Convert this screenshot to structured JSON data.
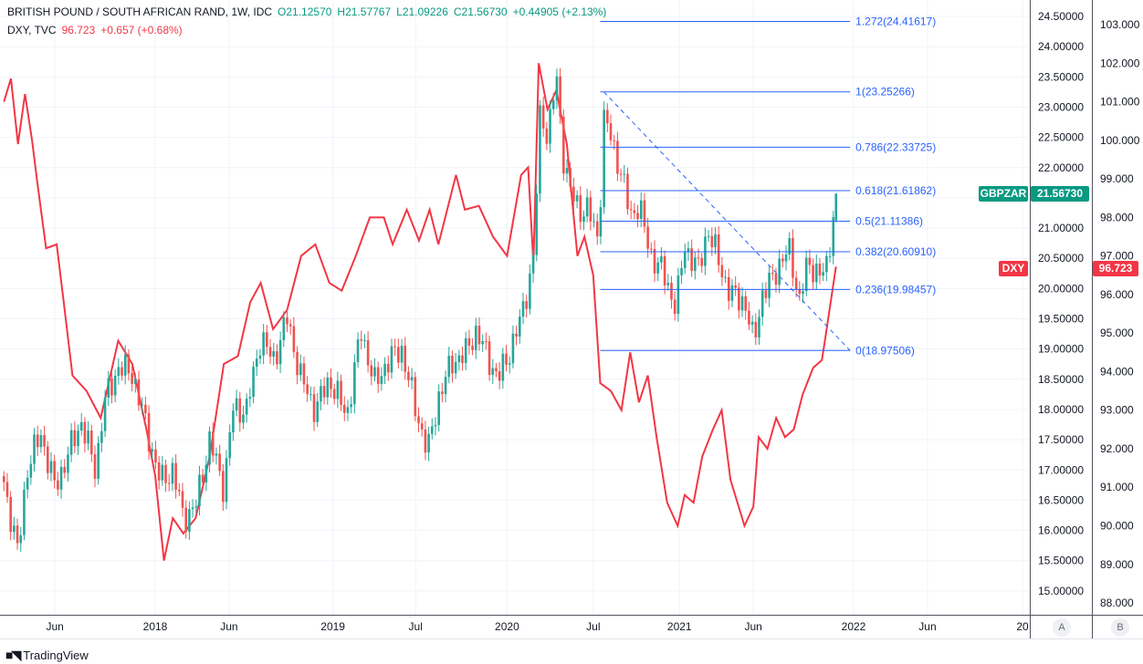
{
  "header": {
    "symbol_line": "BRITISH POUND / SOUTH AFRICAN RAND, 1W, IDC",
    "open": "O21.12570",
    "high": "H21.57767",
    "low": "L21.09226",
    "close": "C21.56730",
    "change": "+0.44905 (+2.13%)",
    "dxy_line": "DXY, TVC",
    "dxy_value": "96.723",
    "dxy_change": "+0.657 (+0.68%)"
  },
  "badges": {
    "gbpzar_name": "GBPZAR",
    "gbpzar_price": "21.56730",
    "dxy_name": "DXY",
    "dxy_price": "96.723"
  },
  "scale_buttons": {
    "a": "A",
    "b": "B"
  },
  "footer": {
    "brand": "TradingView"
  },
  "colors": {
    "up": "#26a69a",
    "down": "#ef5350",
    "dxy": "#f23645",
    "fib": "#2962ff",
    "badge_green": "#089981",
    "badge_red": "#f23645"
  },
  "chart_data": {
    "type": "line",
    "title": "BRITISH POUND / SOUTH AFRICAN RAND, 1W, IDC vs DXY",
    "x_unit": "decimal year",
    "x_ticks": [
      {
        "label": "Jun",
        "t": 2017.43
      },
      {
        "label": "2018",
        "t": 2018.0
      },
      {
        "label": "Jun",
        "t": 2018.42
      },
      {
        "label": "2019",
        "t": 2019.01
      },
      {
        "label": "Jul",
        "t": 2019.48
      },
      {
        "label": "2020",
        "t": 2020.0
      },
      {
        "label": "Jul",
        "t": 2020.49
      },
      {
        "label": "2021",
        "t": 2020.98
      },
      {
        "label": "Jun",
        "t": 2021.4
      },
      {
        "label": "2022",
        "t": 2021.97
      },
      {
        "label": "Jun",
        "t": 2022.39
      },
      {
        "label": "20",
        "t": 2022.93
      }
    ],
    "left_axis": {
      "name": "GBPZAR",
      "ylim": [
        15.0,
        24.5
      ],
      "step": 0.5,
      "decimals": 5
    },
    "right_axis": {
      "name": "DXY",
      "ylim": [
        88,
        103
      ],
      "step": 1,
      "decimals": 3
    },
    "series": [
      {
        "name": "GBPZAR",
        "type": "candlestick",
        "axis": "A",
        "last_candle": {
          "open": 21.1257,
          "high": 21.57767,
          "low": 21.09226,
          "close": 21.5673
        },
        "closes": [
          [
            2017.14,
            16.8
          ],
          [
            2017.22,
            15.6
          ],
          [
            2017.27,
            17.0
          ],
          [
            2017.35,
            17.6
          ],
          [
            2017.43,
            16.7
          ],
          [
            2017.51,
            17.3
          ],
          [
            2017.58,
            17.8
          ],
          [
            2017.66,
            17.0
          ],
          [
            2017.71,
            18.1
          ],
          [
            2017.79,
            18.7
          ],
          [
            2017.87,
            18.6
          ],
          [
            2017.95,
            17.7
          ],
          [
            2018.03,
            16.8
          ],
          [
            2018.1,
            17.0
          ],
          [
            2018.16,
            16.2
          ],
          [
            2018.23,
            16.4
          ],
          [
            2018.31,
            17.5
          ],
          [
            2018.39,
            16.7
          ],
          [
            2018.44,
            18.0
          ],
          [
            2018.52,
            18.0
          ],
          [
            2018.6,
            19.2
          ],
          [
            2018.67,
            18.8
          ],
          [
            2018.75,
            19.5
          ],
          [
            2018.83,
            18.5
          ],
          [
            2018.91,
            18.0
          ],
          [
            2018.99,
            18.5
          ],
          [
            2019.09,
            17.9
          ],
          [
            2019.17,
            19.3
          ],
          [
            2019.25,
            18.4
          ],
          [
            2019.32,
            18.8
          ],
          [
            2019.4,
            19.0
          ],
          [
            2019.48,
            18.0
          ],
          [
            2019.55,
            17.3
          ],
          [
            2019.61,
            18.2
          ],
          [
            2019.69,
            18.8
          ],
          [
            2019.76,
            18.9
          ],
          [
            2019.82,
            19.3
          ],
          [
            2019.87,
            19.0
          ],
          [
            2019.95,
            18.5
          ],
          [
            2020.02,
            19.0
          ],
          [
            2020.08,
            19.5
          ],
          [
            2020.15,
            20.5
          ],
          [
            2020.19,
            23.0
          ],
          [
            2020.23,
            22.5
          ],
          [
            2020.28,
            23.5
          ],
          [
            2020.32,
            22.2
          ],
          [
            2020.36,
            21.6
          ],
          [
            2020.41,
            21.3
          ],
          [
            2020.46,
            21.3
          ],
          [
            2020.52,
            20.8
          ],
          [
            2020.55,
            22.8
          ],
          [
            2020.58,
            22.6
          ],
          [
            2020.65,
            21.9
          ],
          [
            2020.7,
            21.2
          ],
          [
            2020.75,
            21.4
          ],
          [
            2020.81,
            20.6
          ],
          [
            2020.88,
            20.3
          ],
          [
            2020.96,
            19.7
          ],
          [
            2021.01,
            20.7
          ],
          [
            2021.09,
            20.3
          ],
          [
            2021.14,
            21.0
          ],
          [
            2021.22,
            20.3
          ],
          [
            2021.27,
            19.9
          ],
          [
            2021.35,
            19.8
          ],
          [
            2021.4,
            19.1
          ],
          [
            2021.45,
            19.9
          ],
          [
            2021.5,
            20.1
          ],
          [
            2021.56,
            20.5
          ],
          [
            2021.61,
            20.6
          ],
          [
            2021.66,
            19.8
          ],
          [
            2021.71,
            20.4
          ],
          [
            2021.76,
            20.3
          ],
          [
            2021.81,
            20.2
          ],
          [
            2021.87,
            21.5673
          ]
        ]
      },
      {
        "name": "DXY",
        "type": "line",
        "axis": "B",
        "points": [
          [
            2017.14,
            101.0
          ],
          [
            2017.18,
            101.6
          ],
          [
            2017.22,
            99.9
          ],
          [
            2017.26,
            101.2
          ],
          [
            2017.3,
            100.0
          ],
          [
            2017.33,
            98.9
          ],
          [
            2017.38,
            97.2
          ],
          [
            2017.44,
            97.3
          ],
          [
            2017.48,
            95.8
          ],
          [
            2017.53,
            93.9
          ],
          [
            2017.61,
            93.5
          ],
          [
            2017.69,
            92.8
          ],
          [
            2017.79,
            94.8
          ],
          [
            2017.87,
            94.2
          ],
          [
            2017.95,
            92.5
          ],
          [
            2018.0,
            91.3
          ],
          [
            2018.05,
            89.1
          ],
          [
            2018.1,
            90.2
          ],
          [
            2018.16,
            89.8
          ],
          [
            2018.23,
            90.2
          ],
          [
            2018.31,
            91.8
          ],
          [
            2018.39,
            94.2
          ],
          [
            2018.47,
            94.4
          ],
          [
            2018.54,
            95.8
          ],
          [
            2018.6,
            96.3
          ],
          [
            2018.67,
            95.1
          ],
          [
            2018.75,
            95.6
          ],
          [
            2018.83,
            97.0
          ],
          [
            2018.91,
            97.3
          ],
          [
            2018.99,
            96.3
          ],
          [
            2019.06,
            96.1
          ],
          [
            2019.14,
            97.0
          ],
          [
            2019.22,
            98.0
          ],
          [
            2019.3,
            98.0
          ],
          [
            2019.35,
            97.3
          ],
          [
            2019.43,
            98.2
          ],
          [
            2019.5,
            97.4
          ],
          [
            2019.56,
            98.2
          ],
          [
            2019.61,
            97.3
          ],
          [
            2019.71,
            99.1
          ],
          [
            2019.76,
            98.2
          ],
          [
            2019.84,
            98.3
          ],
          [
            2019.92,
            97.5
          ],
          [
            2020.0,
            97.0
          ],
          [
            2020.08,
            99.1
          ],
          [
            2020.12,
            99.3
          ],
          [
            2020.15,
            96.8
          ],
          [
            2020.18,
            102.0
          ],
          [
            2020.23,
            100.8
          ],
          [
            2020.28,
            101.3
          ],
          [
            2020.34,
            99.9
          ],
          [
            2020.4,
            97.0
          ],
          [
            2020.44,
            97.5
          ],
          [
            2020.49,
            96.5
          ],
          [
            2020.53,
            93.7
          ],
          [
            2020.59,
            93.5
          ],
          [
            2020.65,
            93.0
          ],
          [
            2020.7,
            94.5
          ],
          [
            2020.75,
            93.2
          ],
          [
            2020.8,
            93.9
          ],
          [
            2020.85,
            92.3
          ],
          [
            2020.91,
            90.6
          ],
          [
            2020.97,
            90.0
          ],
          [
            2021.01,
            90.8
          ],
          [
            2021.06,
            90.6
          ],
          [
            2021.11,
            91.8
          ],
          [
            2021.17,
            92.5
          ],
          [
            2021.22,
            93.0
          ],
          [
            2021.27,
            91.2
          ],
          [
            2021.35,
            90.0
          ],
          [
            2021.4,
            90.5
          ],
          [
            2021.43,
            92.3
          ],
          [
            2021.48,
            92.0
          ],
          [
            2021.53,
            92.8
          ],
          [
            2021.58,
            92.3
          ],
          [
            2021.63,
            92.5
          ],
          [
            2021.68,
            93.4
          ],
          [
            2021.74,
            94.1
          ],
          [
            2021.79,
            94.3
          ],
          [
            2021.81,
            94.9
          ],
          [
            2021.87,
            96.723
          ]
        ]
      }
    ],
    "fibonacci": {
      "t_start": 2020.53,
      "t_end": 2021.95,
      "levels": [
        {
          "label": "1.272(24.41617)",
          "value": 24.41617
        },
        {
          "label": "1(23.25266)",
          "value": 23.25266
        },
        {
          "label": "0.786(22.33725)",
          "value": 22.33725
        },
        {
          "label": "0.618(21.61862)",
          "value": 21.61862
        },
        {
          "label": "0.5(21.11386)",
          "value": 21.11386
        },
        {
          "label": "0.382(20.60910)",
          "value": 20.6091
        },
        {
          "label": "0.236(19.98457)",
          "value": 19.98457
        },
        {
          "label": "0(18.97506)",
          "value": 18.97506
        }
      ],
      "trendline": {
        "from": [
          2020.55,
          23.25266
        ],
        "to": [
          2021.95,
          18.97506
        ]
      }
    }
  }
}
